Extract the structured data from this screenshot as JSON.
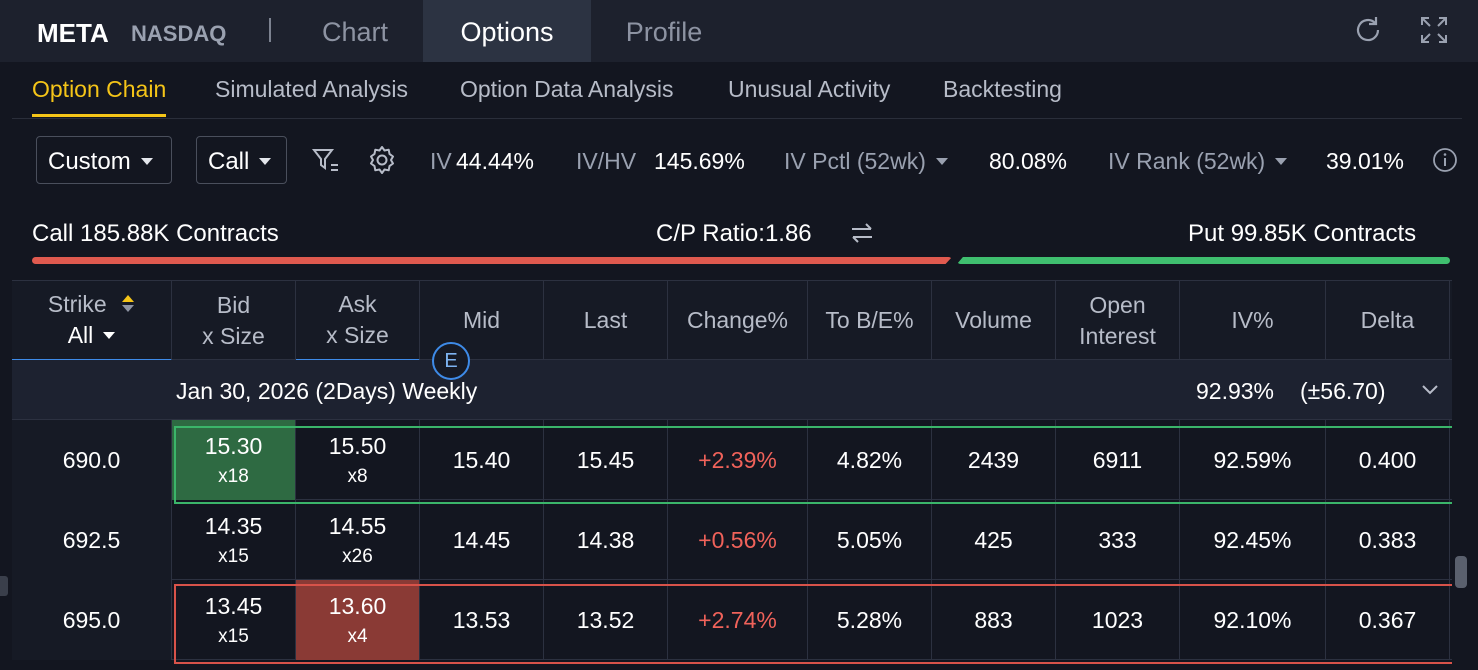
{
  "header": {
    "symbol": "META",
    "exchange": "NASDAQ",
    "tabs": [
      "Chart",
      "Options",
      "Profile"
    ],
    "active_tab": "Options"
  },
  "subtabs": [
    "Option Chain",
    "Simulated Analysis",
    "Option Data Analysis",
    "Unusual Activity",
    "Backtesting"
  ],
  "toolbar": {
    "custom_label": "Custom",
    "type_label": "Call",
    "iv_label": "IV",
    "iv_value": "44.44%",
    "ivhv_label": "IV/HV",
    "ivhv_value": "145.69%",
    "ivpctl_label": "IV Pctl (52wk)",
    "ivpctl_value": "80.08%",
    "ivrank_label": "IV Rank (52wk)",
    "ivrank_value": "39.01%"
  },
  "summary": {
    "call_text": "Call 185.88K Contracts",
    "ratio_text": "C/P Ratio:1.86",
    "put_text": "Put 99.85K Contracts",
    "call_color": "#e05a4f",
    "put_color": "#3fbf6f"
  },
  "table": {
    "headers": {
      "strike": "Strike",
      "strike_filter": "All",
      "bid": "Bid",
      "bid2": "x Size",
      "ask": "Ask",
      "ask2": "x Size",
      "mid": "Mid",
      "last": "Last",
      "change": "Change%",
      "tobe": "To B/E%",
      "volume": "Volume",
      "oi": "Open",
      "oi2": "Interest",
      "iv": "IV%",
      "delta": "Delta"
    },
    "expiry_badge": "E",
    "group": {
      "label": "Jan 30, 2026 (2Days) Weekly",
      "iv": "92.93%",
      "move": "(±56.70)"
    },
    "rows": [
      {
        "strike": "690.0",
        "bid": "15.30",
        "bid_size": "x18",
        "ask": "15.50",
        "ask_size": "x8",
        "mid": "15.40",
        "last": "15.45",
        "change": "+2.39%",
        "tobe": "4.82%",
        "volume": "2439",
        "oi": "6911",
        "iv": "92.59%",
        "delta": "0.400"
      },
      {
        "strike": "692.5",
        "bid": "14.35",
        "bid_size": "x15",
        "ask": "14.55",
        "ask_size": "x26",
        "mid": "14.45",
        "last": "14.38",
        "change": "+0.56%",
        "tobe": "5.05%",
        "volume": "425",
        "oi": "333",
        "iv": "92.45%",
        "delta": "0.383"
      },
      {
        "strike": "695.0",
        "bid": "13.45",
        "bid_size": "x15",
        "ask": "13.60",
        "ask_size": "x4",
        "mid": "13.53",
        "last": "13.52",
        "change": "+2.74%",
        "tobe": "5.28%",
        "volume": "883",
        "oi": "1023",
        "iv": "92.10%",
        "delta": "0.367"
      }
    ]
  }
}
